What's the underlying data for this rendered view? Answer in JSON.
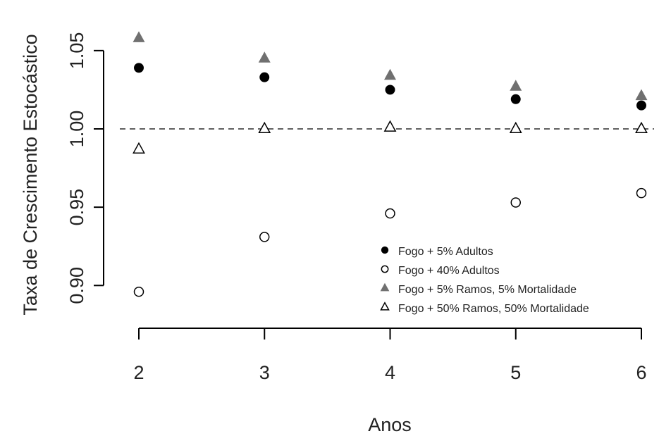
{
  "chart_data": {
    "type": "scatter",
    "title": "",
    "xlabel": "Anos",
    "ylabel": "Taxa de Crescimento Estocástico",
    "x": [
      2,
      3,
      4,
      5,
      6
    ],
    "x_tick_labels": [
      "2",
      "3",
      "4",
      "5",
      "6"
    ],
    "y_tick_values": [
      0.9,
      0.95,
      1.0,
      1.05
    ],
    "y_tick_labels": [
      "0.90",
      "0.95",
      "1.00",
      "1.05"
    ],
    "xlim": [
      2,
      6
    ],
    "ylim": [
      0.875,
      1.063
    ],
    "reference_line": {
      "y": 1.0,
      "style": "dashed"
    },
    "grid": false,
    "legend_position": "bottom-right",
    "series": [
      {
        "name": "Fogo + 5% Adultos",
        "marker": "filled-circle",
        "color": "#000000",
        "values": [
          1.039,
          1.033,
          1.025,
          1.019,
          1.015
        ]
      },
      {
        "name": "Fogo + 40% Adultos",
        "marker": "open-circle",
        "color": "#000000",
        "values": [
          0.896,
          0.931,
          0.946,
          0.953,
          0.959
        ]
      },
      {
        "name": "Fogo + 5% Ramos, 5% Mortalidade",
        "marker": "filled-triangle",
        "color": "#707070",
        "values": [
          1.058,
          1.045,
          1.034,
          1.027,
          1.021
        ]
      },
      {
        "name": "Fogo + 50% Ramos, 50% Mortalidade",
        "marker": "open-triangle",
        "color": "#000000",
        "values": [
          0.987,
          1.0,
          1.001,
          1.0,
          1.0
        ]
      }
    ]
  }
}
